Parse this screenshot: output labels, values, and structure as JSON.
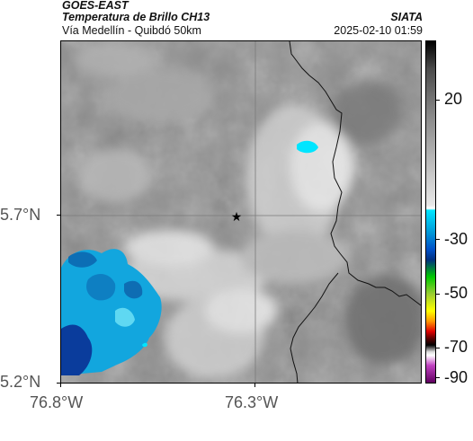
{
  "header": {
    "satellite": "GOES-EAST",
    "product": "Temperatura de Brillo CH13",
    "region": "Vía Medellín - Quibdó 50km",
    "agency": "SIATA",
    "datetime": "2025-02-10 01:59"
  },
  "axes": {
    "lon_ticks": [
      "76.8°W",
      "76.3°W"
    ],
    "lat_ticks": [
      "5.7°N",
      "5.2°N"
    ]
  },
  "colorbar": {
    "ticks": [
      "20",
      "-30",
      "-50",
      "-70",
      "-90"
    ],
    "colors": {
      "gray_light": "#e8e8e8",
      "gray_dark": "#4a4a4a",
      "cyan": "#00e5ff",
      "blue": "#0050c8",
      "green": "#00c800",
      "yellow": "#ffff00",
      "red": "#e00000",
      "black": "#000000",
      "magenta": "#c040c0"
    }
  },
  "map": {
    "marker": "star",
    "colors": {
      "base_gray": "#8c8c8c",
      "cloud_light": "#dedede",
      "cold_cloud": "#14a8e0",
      "deep_cloud": "#0a3c9c",
      "border": "#111111"
    }
  }
}
